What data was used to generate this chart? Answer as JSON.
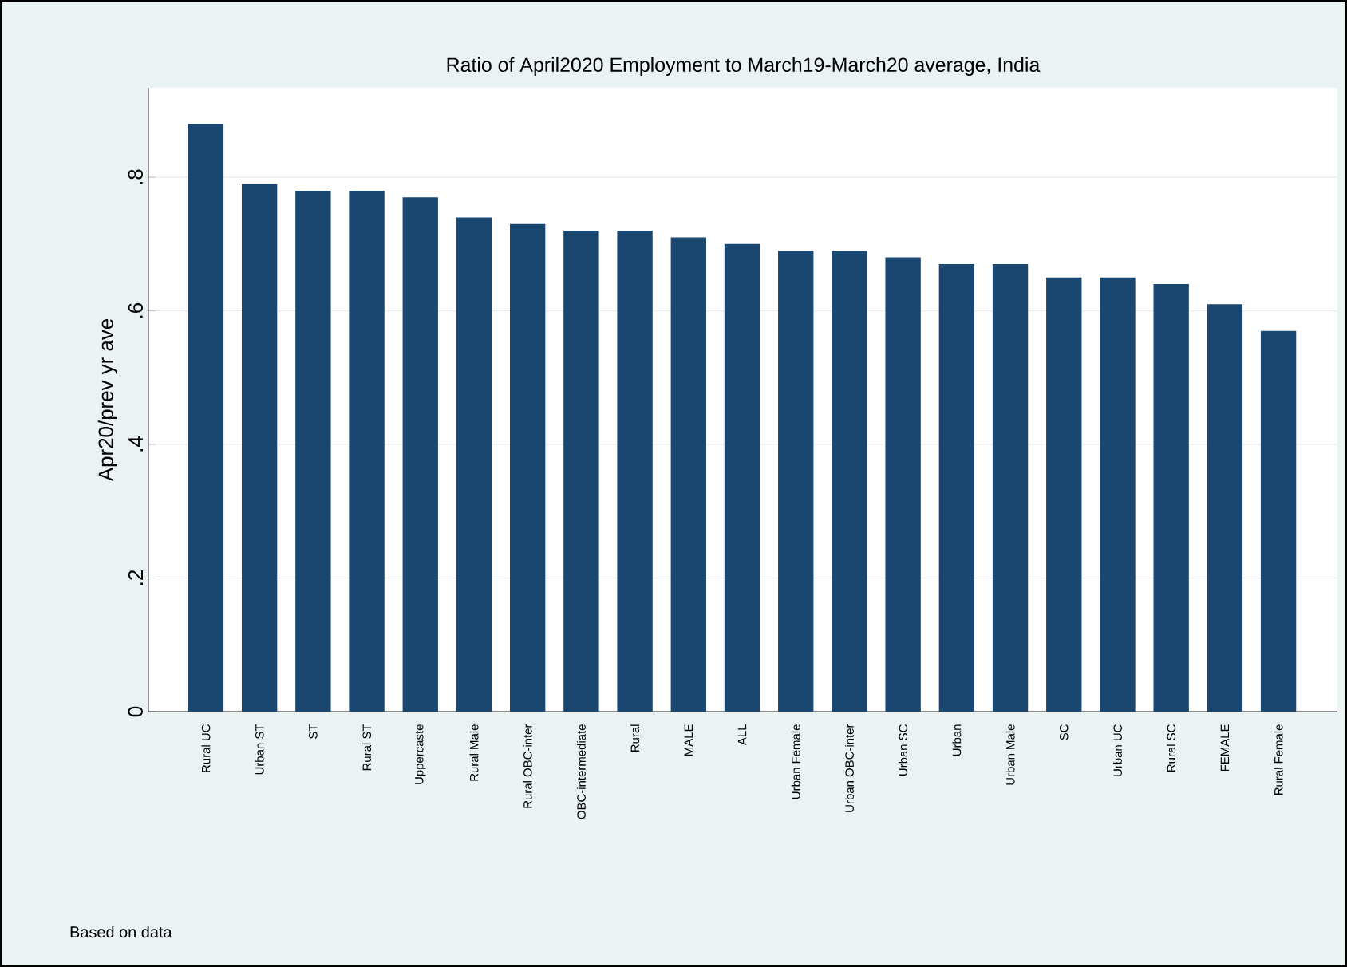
{
  "chart_data": {
    "type": "bar",
    "title": "Ratio of April2020 Employment to March19-March20 average, India",
    "ylabel": "Apr20/prev yr ave",
    "categories": [
      "Rural UC",
      "Urban ST",
      "ST",
      "Rural ST",
      "Uppercaste",
      "Rural Male",
      "Rural OBC-inter",
      "OBC-intermediate",
      "Rural",
      "MALE",
      "ALL",
      "Urban Female",
      "Urban OBC-inter",
      "Urban SC",
      "Urban",
      "Urban Male",
      "SC",
      "Urban UC",
      "Rural SC",
      "FEMALE",
      "Rural Female"
    ],
    "values": [
      0.88,
      0.79,
      0.78,
      0.78,
      0.77,
      0.74,
      0.73,
      0.72,
      0.72,
      0.71,
      0.7,
      0.69,
      0.69,
      0.68,
      0.67,
      0.67,
      0.65,
      0.65,
      0.64,
      0.61,
      0.57
    ],
    "color": "#1a476f",
    "ylim": [
      0,
      0.934
    ],
    "yticks": [
      0,
      {
        "value": 0.2,
        "label": ".2"
      },
      {
        "value": 0.4,
        "label": ".4"
      },
      {
        "value": 0.6,
        "label": ".6"
      },
      {
        "value": 0.8,
        "label": ".8"
      }
    ],
    "grid": "y",
    "annotations": [
      "Based on data"
    ]
  }
}
